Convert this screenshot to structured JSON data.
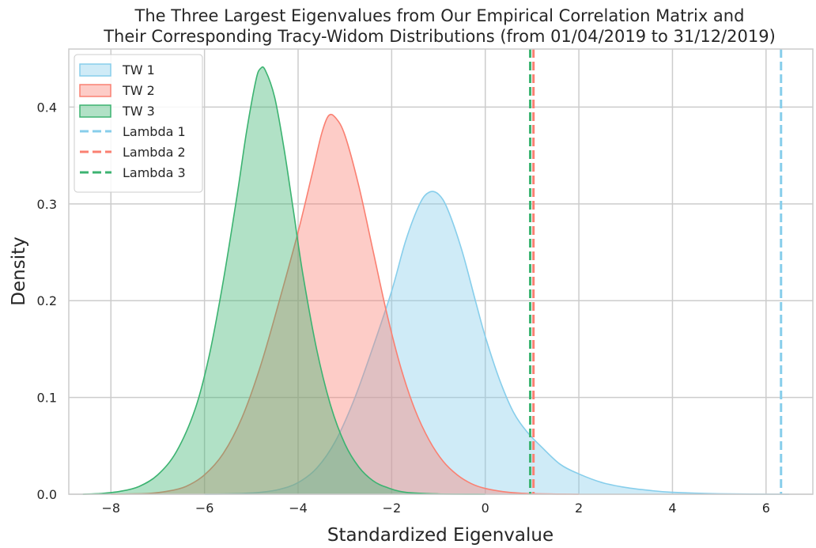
{
  "chart_data": {
    "type": "area",
    "title_lines": [
      "The Three Largest Eigenvalues from Our Empirical Correlation Matrix and",
      "Their Corresponding Tracy-Widom Distributions (from 01/04/2019 to 31/12/2019)"
    ],
    "xlabel": "Standardized Eigenvalue",
    "ylabel": "Density",
    "xlim": [
      -8.9,
      7.0
    ],
    "ylim": [
      0,
      0.46
    ],
    "x_ticks": [
      -8,
      -6,
      -4,
      -2,
      0,
      2,
      4,
      6
    ],
    "x_tick_labels": [
      "−8",
      "−6",
      "−4",
      "−2",
      "0",
      "2",
      "4",
      "6"
    ],
    "y_ticks": [
      0.0,
      0.1,
      0.2,
      0.3,
      0.4
    ],
    "y_tick_labels": [
      "0.0",
      "0.1",
      "0.2",
      "0.3",
      "0.4"
    ],
    "grid": true,
    "legend_position": "top-left",
    "series": [
      {
        "name": "TW 1",
        "kind": "density",
        "color": "#87ceeb",
        "points": [
          [
            -6.0,
            0.0
          ],
          [
            -5.2,
            0.0008
          ],
          [
            -4.8,
            0.002
          ],
          [
            -4.4,
            0.005
          ],
          [
            -4.0,
            0.012
          ],
          [
            -3.6,
            0.027
          ],
          [
            -3.2,
            0.055
          ],
          [
            -2.8,
            0.098
          ],
          [
            -2.4,
            0.152
          ],
          [
            -2.0,
            0.21
          ],
          [
            -1.7,
            0.262
          ],
          [
            -1.4,
            0.3
          ],
          [
            -1.2,
            0.312
          ],
          [
            -1.0,
            0.31
          ],
          [
            -0.8,
            0.294
          ],
          [
            -0.5,
            0.252
          ],
          [
            -0.2,
            0.198
          ],
          [
            0.0,
            0.163
          ],
          [
            0.3,
            0.119
          ],
          [
            0.6,
            0.085
          ],
          [
            0.9,
            0.064
          ],
          [
            1.2,
            0.049
          ],
          [
            1.6,
            0.031
          ],
          [
            2.0,
            0.021
          ],
          [
            2.5,
            0.012
          ],
          [
            3.0,
            0.007
          ],
          [
            3.5,
            0.004
          ],
          [
            4.0,
            0.002
          ],
          [
            5.0,
            0.0005
          ],
          [
            6.5,
            0.0
          ]
        ]
      },
      {
        "name": "TW 2",
        "kind": "density",
        "color": "#fa8072",
        "points": [
          [
            -8.0,
            0.0
          ],
          [
            -7.2,
            0.0008
          ],
          [
            -6.8,
            0.003
          ],
          [
            -6.4,
            0.008
          ],
          [
            -6.0,
            0.02
          ],
          [
            -5.6,
            0.042
          ],
          [
            -5.2,
            0.079
          ],
          [
            -4.8,
            0.133
          ],
          [
            -4.4,
            0.2
          ],
          [
            -4.0,
            0.271
          ],
          [
            -3.7,
            0.331
          ],
          [
            -3.5,
            0.372
          ],
          [
            -3.35,
            0.391
          ],
          [
            -3.2,
            0.389
          ],
          [
            -3.0,
            0.371
          ],
          [
            -2.7,
            0.318
          ],
          [
            -2.4,
            0.252
          ],
          [
            -2.1,
            0.186
          ],
          [
            -1.8,
            0.13
          ],
          [
            -1.5,
            0.087
          ],
          [
            -1.2,
            0.056
          ],
          [
            -0.9,
            0.034
          ],
          [
            -0.6,
            0.02
          ],
          [
            -0.3,
            0.011
          ],
          [
            0.0,
            0.006
          ],
          [
            0.5,
            0.002
          ],
          [
            1.0,
            0.0006
          ],
          [
            2.0,
            0.0
          ]
        ]
      },
      {
        "name": "TW 3",
        "kind": "density",
        "color": "#3cb371",
        "points": [
          [
            -8.6,
            0.0
          ],
          [
            -8.2,
            0.0008
          ],
          [
            -7.8,
            0.003
          ],
          [
            -7.4,
            0.008
          ],
          [
            -7.0,
            0.02
          ],
          [
            -6.6,
            0.044
          ],
          [
            -6.2,
            0.088
          ],
          [
            -5.9,
            0.143
          ],
          [
            -5.6,
            0.22
          ],
          [
            -5.3,
            0.31
          ],
          [
            -5.1,
            0.375
          ],
          [
            -4.9,
            0.428
          ],
          [
            -4.8,
            0.44
          ],
          [
            -4.7,
            0.438
          ],
          [
            -4.5,
            0.41
          ],
          [
            -4.3,
            0.357
          ],
          [
            -4.1,
            0.293
          ],
          [
            -3.9,
            0.228
          ],
          [
            -3.6,
            0.149
          ],
          [
            -3.3,
            0.091
          ],
          [
            -3.0,
            0.052
          ],
          [
            -2.7,
            0.028
          ],
          [
            -2.4,
            0.014
          ],
          [
            -2.1,
            0.007
          ],
          [
            -1.7,
            0.002
          ],
          [
            -1.0,
            0.0003
          ],
          [
            0.0,
            0.0
          ]
        ]
      },
      {
        "name": "Lambda 1",
        "kind": "vline",
        "x": 6.32,
        "color": "#87ceeb"
      },
      {
        "name": "Lambda 2",
        "kind": "vline",
        "x": 1.03,
        "color": "#fa8072"
      },
      {
        "name": "Lambda 3",
        "kind": "vline",
        "x": 0.96,
        "color": "#3cb371"
      }
    ]
  }
}
